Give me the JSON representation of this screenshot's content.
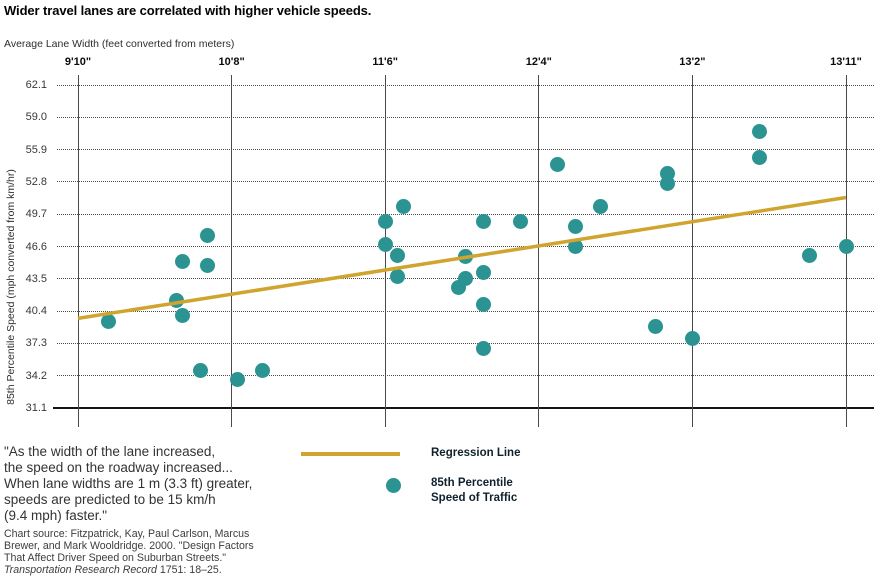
{
  "title": "Wider travel lanes are correlated with higher vehicle speeds.",
  "chart_data": {
    "type": "scatter",
    "x_axis": {
      "title": "Average Lane Width (feet converted from meters)",
      "tick_labels": [
        "9'10\"",
        "10'8\"",
        "11'6\"",
        "12'4\"",
        "13'2\"",
        "13'11\""
      ],
      "tick_values_m": [
        3.0,
        3.25,
        3.5,
        3.75,
        4.0,
        4.25
      ],
      "range_m": [
        3.0,
        4.25
      ]
    },
    "y_axis": {
      "title": "85th Percentile Speed (mph converted from km/hr)",
      "tick_labels": [
        "62.1",
        "59.0",
        "55.9",
        "52.8",
        "49.7",
        "46.6",
        "43.5",
        "40.4",
        "37.3",
        "34.2",
        "31.1"
      ],
      "min": 31.1,
      "max": 62.1,
      "grid": "dotted horizontal, solid baseline"
    },
    "points_format": "[lane_width_meters, speed_mph]",
    "points": [
      [
        3.05,
        39.4
      ],
      [
        3.16,
        41.4
      ],
      [
        3.17,
        45.2
      ],
      [
        3.17,
        40.0
      ],
      [
        3.21,
        47.7
      ],
      [
        3.21,
        44.8
      ],
      [
        3.2,
        34.7
      ],
      [
        3.26,
        33.8
      ],
      [
        3.3,
        34.7
      ],
      [
        3.5,
        49.0
      ],
      [
        3.5,
        46.8
      ],
      [
        3.52,
        45.7
      ],
      [
        3.52,
        43.7
      ],
      [
        3.53,
        50.4
      ],
      [
        3.62,
        42.7
      ],
      [
        3.63,
        45.6
      ],
      [
        3.63,
        43.5
      ],
      [
        3.66,
        44.1
      ],
      [
        3.66,
        49.0
      ],
      [
        3.66,
        41.0
      ],
      [
        3.66,
        36.8
      ],
      [
        3.72,
        49.0
      ],
      [
        3.78,
        54.5
      ],
      [
        3.81,
        48.5
      ],
      [
        3.81,
        46.6
      ],
      [
        3.85,
        50.4
      ],
      [
        3.94,
        38.9
      ],
      [
        3.96,
        53.6
      ],
      [
        3.96,
        52.6
      ],
      [
        4.0,
        37.8
      ],
      [
        4.11,
        57.6
      ],
      [
        4.11,
        55.1
      ],
      [
        4.19,
        45.7
      ],
      [
        4.25,
        46.6
      ]
    ],
    "regression_line": {
      "x1": 3.0,
      "y1": 39.7,
      "x2": 4.25,
      "y2": 51.3
    },
    "colors": {
      "point": "#2b9492",
      "line": "#cfa42f"
    },
    "legend_position": "below chart"
  },
  "legend": {
    "line_label": "Regression Line",
    "point_label": "85th Percentile\nSpeed of Traffic"
  },
  "quote": "\"As the width of the lane increased,\nthe speed on the roadway increased...\nWhen lane widths are 1 m (3.3 ft) greater,\nspeeds are predicted to be 15 km/h\n(9.4 mph) faster.\"",
  "source": {
    "main": "Chart source: Fitzpatrick, Kay, Paul Carlson, Marcus\nBrewer, and Mark Wooldridge. 2000. \"Design Factors\nThat Affect Driver Speed on Suburban Streets.\"",
    "italic": "Transportation Research Record",
    "tail": " 1751: 18–25."
  }
}
